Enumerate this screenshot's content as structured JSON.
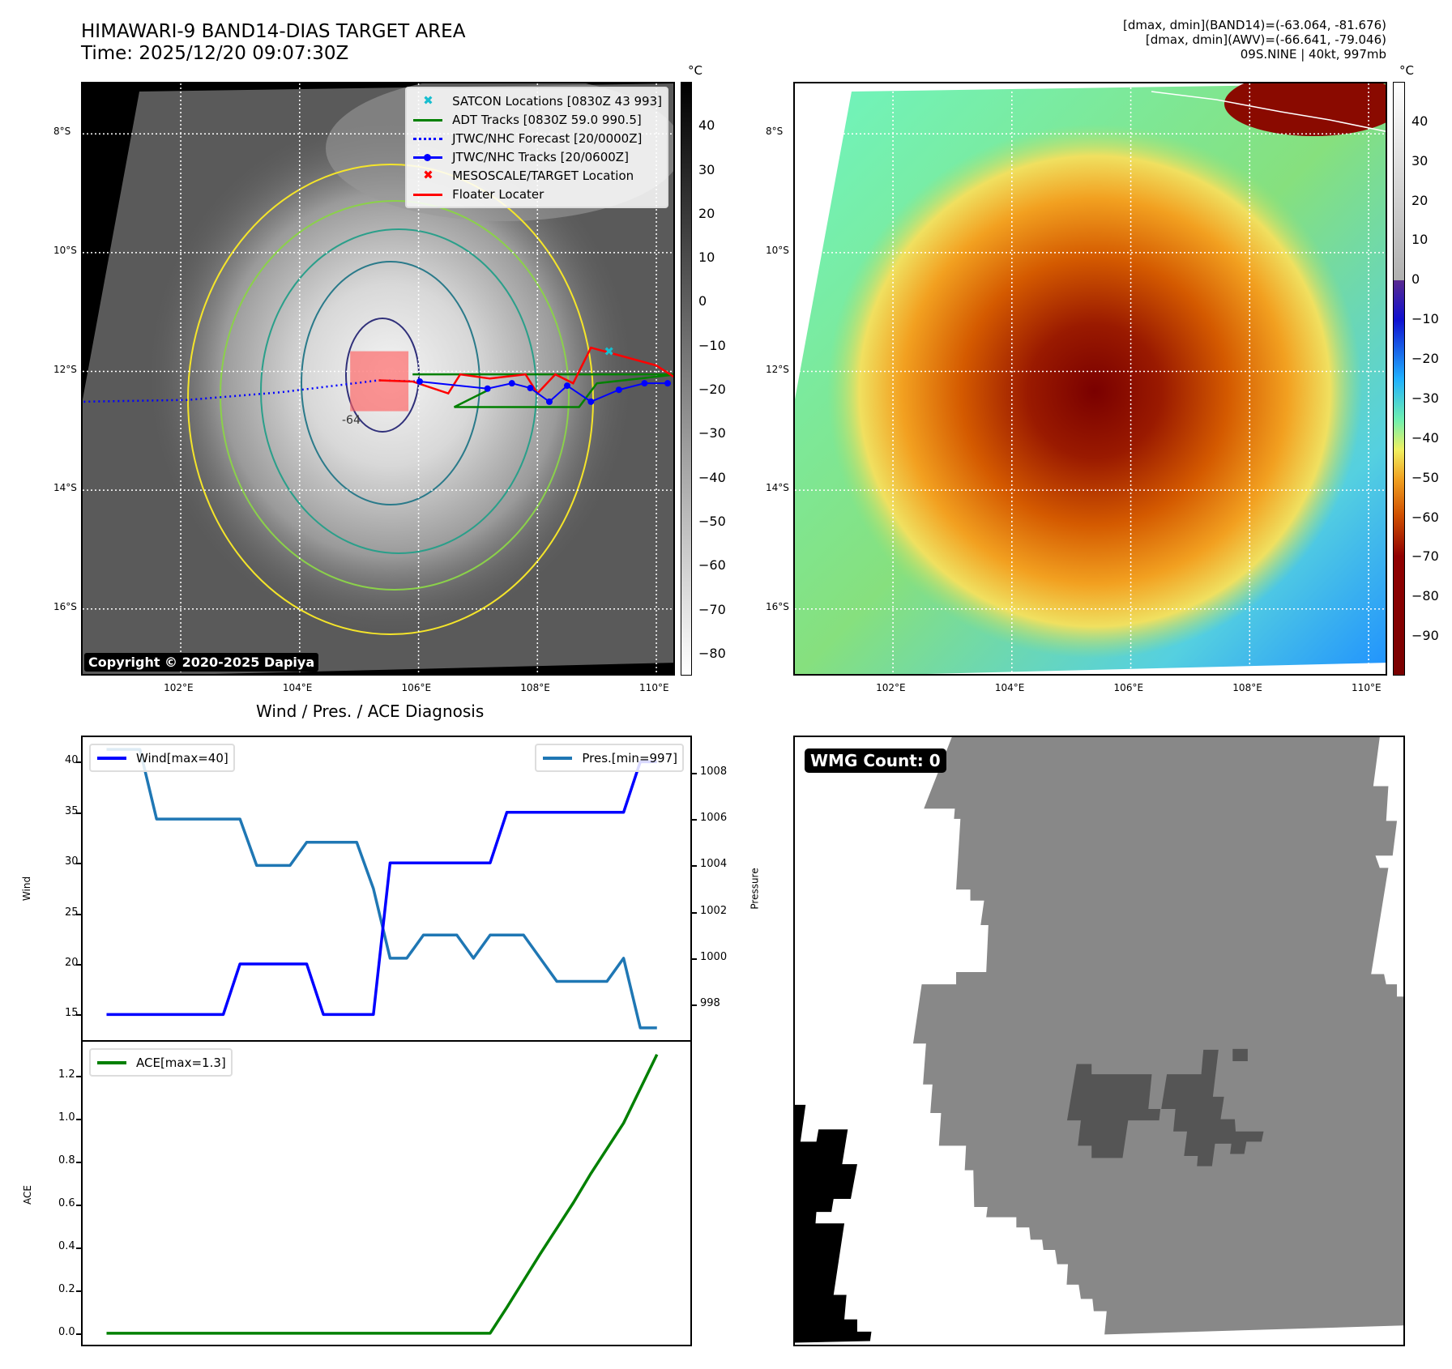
{
  "header": {
    "title_line1": "HIMAWARI-9 BAND14-DIAS TARGET AREA",
    "title_line2": "Time: 2025/12/20 09:07:30Z",
    "info_line1": "[dmax, dmin](BAND14)=(-63.064, -81.676)",
    "info_line2": "[dmax, dmin](AWV)=(-66.641, -79.046)",
    "info_line3": "09S.NINE | 40kt, 997mb"
  },
  "maps": {
    "lat_labels": [
      "8°S",
      "10°S",
      "12°S",
      "14°S",
      "16°S"
    ],
    "lat_values": [
      8,
      10,
      12,
      14,
      16
    ],
    "lon_labels": [
      "102°E",
      "104°E",
      "106°E",
      "108°E",
      "110°E"
    ],
    "lon_values": [
      102,
      104,
      106,
      108,
      110
    ],
    "lon_range": [
      100.35,
      110.34
    ],
    "lat_range": [
      7.15,
      17.15
    ],
    "colorbar_unit": "°C",
    "left_colorbar_ticks": [
      "40",
      "30",
      "20",
      "10",
      "0",
      "−10",
      "−20",
      "−30",
      "−40",
      "−50",
      "−60",
      "−70",
      "−80"
    ],
    "left_colorbar_values": [
      40,
      30,
      20,
      10,
      0,
      -10,
      -20,
      -30,
      -40,
      -50,
      -60,
      -70,
      -80
    ],
    "left_colorbar_range": [
      -85,
      50
    ],
    "right_colorbar_ticks": [
      "40",
      "30",
      "20",
      "10",
      "0",
      "−10",
      "−20",
      "−30",
      "−40",
      "−50",
      "−60",
      "−70",
      "−80",
      "−90"
    ],
    "right_colorbar_values": [
      40,
      30,
      20,
      10,
      0,
      -10,
      -20,
      -30,
      -40,
      -50,
      -60,
      -70,
      -80,
      -90
    ],
    "right_colorbar_range": [
      -100,
      50
    ],
    "copyright": "Copyright © 2020-2025 Dapiya",
    "contour_label": "-64",
    "legend": [
      {
        "label": "SATCON Locations [0830Z 43 993]",
        "color": "#17becf"
      },
      {
        "label": "ADT Tracks [0830Z 59.0 990.5]",
        "color": "#008000"
      },
      {
        "label": "JTWC/NHC Forecast [20/0000Z]",
        "color": "#0000ff"
      },
      {
        "label": "JTWC/NHC Tracks [20/0600Z]",
        "color": "#0000ff"
      },
      {
        "label": "MESOSCALE/TARGET Location",
        "color": "#ff0000"
      },
      {
        "label": "Floater Locater",
        "color": "#ff0000"
      }
    ],
    "jtwc_track": [
      [
        110.19,
        12.2
      ],
      [
        109.8,
        12.2
      ],
      [
        109.37,
        12.31
      ],
      [
        108.9,
        12.51
      ],
      [
        108.5,
        12.24
      ],
      [
        108.2,
        12.51
      ],
      [
        107.88,
        12.28
      ],
      [
        107.57,
        12.2
      ],
      [
        107.16,
        12.29
      ],
      [
        106.02,
        12.17
      ]
    ],
    "jtwc_forecast": [
      [
        106.02,
        12.17
      ],
      [
        105.33,
        12.15
      ],
      [
        103.69,
        12.35
      ],
      [
        102.12,
        12.48
      ],
      [
        100.35,
        12.51
      ]
    ],
    "floater_track": [
      [
        105.33,
        12.15
      ],
      [
        105.9,
        12.17
      ],
      [
        106.5,
        12.37
      ],
      [
        106.7,
        12.05
      ],
      [
        107.2,
        12.12
      ],
      [
        107.8,
        12.05
      ],
      [
        108.0,
        12.37
      ],
      [
        108.3,
        12.05
      ],
      [
        108.6,
        12.2
      ],
      [
        108.9,
        11.6
      ],
      [
        110.0,
        11.9
      ],
      [
        110.34,
        12.12
      ]
    ],
    "adt_track": [
      [
        105.9,
        12.05
      ],
      [
        110.34,
        12.05
      ],
      [
        109.0,
        12.2
      ],
      [
        108.7,
        12.6
      ],
      [
        106.6,
        12.6
      ],
      [
        107.2,
        12.3
      ]
    ],
    "satcon_location": [
      109.2,
      11.65
    ],
    "floater_box": {
      "lon": [
        104.85,
        105.83
      ],
      "lat": [
        11.66,
        12.67
      ]
    },
    "wmg_label": "WMG Count: 0"
  },
  "chart_data": [
    {
      "type": "line",
      "title": "Wind / Pres. / ACE Diagnosis",
      "x": [
        0,
        1,
        2,
        3,
        4,
        5,
        6,
        7,
        8,
        9,
        10,
        11,
        12,
        13,
        14,
        15,
        16,
        17,
        18,
        19,
        20,
        21,
        22,
        23,
        24,
        25,
        26,
        27,
        28,
        29,
        30,
        31,
        32,
        33
      ],
      "xlim": [
        -1.53,
        35.1
      ],
      "ylabel": "Wind",
      "y2label": "Pressure",
      "ylim": [
        12.3,
        42.6
      ],
      "y2lim": [
        996.4,
        1009.6
      ],
      "yticks": [
        15,
        20,
        25,
        30,
        35,
        40
      ],
      "y2ticks": [
        998,
        1000,
        1002,
        1004,
        1006,
        1008
      ],
      "series": [
        {
          "name": "Wind[max=40]",
          "axis": "left",
          "color": "#0000ff",
          "values": [
            15,
            15,
            15,
            15,
            15,
            15,
            15,
            15,
            20,
            20,
            20,
            20,
            20,
            15,
            15,
            15,
            15,
            30,
            30,
            30,
            30,
            30,
            30,
            30,
            35,
            35,
            35,
            35,
            35,
            35,
            35,
            35,
            40,
            40
          ]
        },
        {
          "name": "Pres.[min=997]",
          "axis": "right",
          "color": "#1f77b4",
          "values": [
            1009,
            1009,
            1009,
            1006,
            1006,
            1006,
            1006,
            1006,
            1006,
            1004,
            1004,
            1004,
            1005,
            1005,
            1005,
            1005,
            1003,
            1000,
            1000,
            1001,
            1001,
            1001,
            1000,
            1001,
            1001,
            1001,
            1000,
            999,
            999,
            999,
            999,
            1000,
            997,
            997
          ]
        }
      ],
      "legend": [
        "top-left",
        "top-right"
      ]
    },
    {
      "type": "line",
      "title": "",
      "x": [
        0,
        1,
        2,
        3,
        4,
        5,
        6,
        7,
        8,
        9,
        10,
        11,
        12,
        13,
        14,
        15,
        16,
        17,
        18,
        19,
        20,
        21,
        22,
        23,
        24,
        25,
        26,
        27,
        28,
        29,
        30,
        31,
        32,
        33
      ],
      "xlim": [
        -1.53,
        35.1
      ],
      "ylabel": "ACE",
      "ylim": [
        -0.061,
        1.367
      ],
      "yticks": [
        "0.0",
        "0.2",
        "0.4",
        "0.6",
        "0.8",
        "1.0",
        "1.2"
      ],
      "ytick_values": [
        0,
        0.2,
        0.4,
        0.6,
        0.8,
        1.0,
        1.2
      ],
      "series": [
        {
          "name": "ACE[max=1.3]",
          "color": "#008000",
          "values": [
            0,
            0,
            0,
            0,
            0,
            0,
            0,
            0,
            0,
            0,
            0,
            0,
            0,
            0,
            0,
            0,
            0,
            0,
            0,
            0,
            0,
            0,
            0,
            0,
            0.12,
            0.245,
            0.37,
            0.49,
            0.61,
            0.74,
            0.86,
            0.98,
            1.14,
            1.3
          ]
        }
      ],
      "legend": "top-left"
    }
  ]
}
